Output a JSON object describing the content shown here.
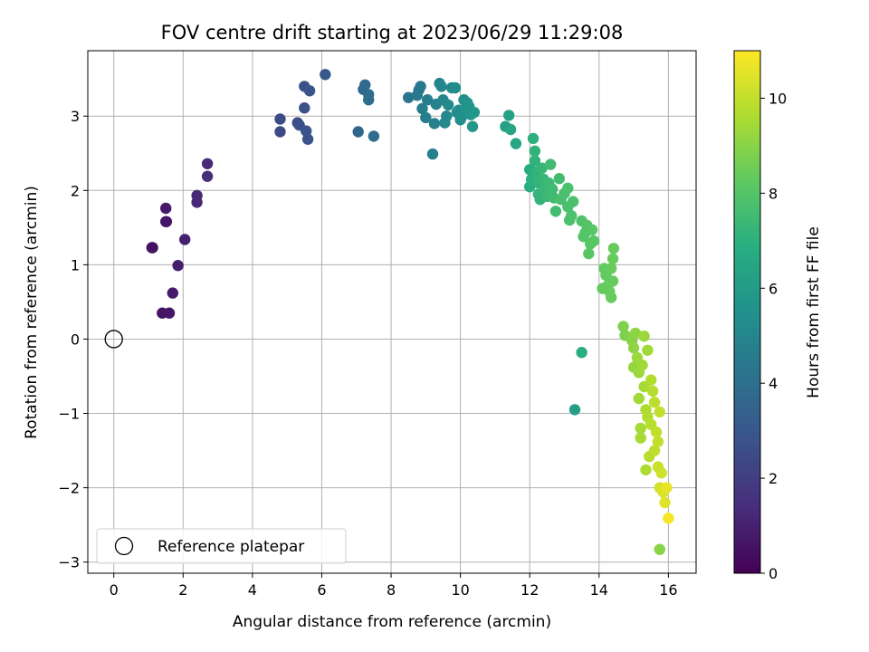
{
  "chart_data": {
    "type": "scatter",
    "title": "FOV centre drift starting at 2023/06/29 11:29:08",
    "xlabel": "Angular distance from reference (arcmin)",
    "ylabel": "Rotation from reference (arcmin)",
    "xlim": [
      -0.75,
      16.8
    ],
    "ylim": [
      -3.15,
      3.88
    ],
    "xticks": [
      0,
      2,
      4,
      6,
      8,
      10,
      12,
      14,
      16
    ],
    "xtick_labels": [
      "0",
      "2",
      "4",
      "6",
      "8",
      "10",
      "12",
      "14",
      "16"
    ],
    "yticks": [
      -3,
      -2,
      -1,
      0,
      1,
      2,
      3
    ],
    "ytick_labels": [
      "−3",
      "−2",
      "−1",
      "0",
      "1",
      "2",
      "3"
    ],
    "grid": true,
    "colormap": "viridis",
    "colorbar": {
      "label": "Hours from first FF file",
      "range": [
        0,
        11
      ],
      "ticks": [
        0,
        2,
        4,
        6,
        8,
        10
      ],
      "tick_labels": [
        "0",
        "2",
        "4",
        "6",
        "8",
        "10"
      ]
    },
    "legend": {
      "placement": "lower-left",
      "entries": [
        {
          "label": "Reference platepar",
          "marker": "open-circle"
        }
      ]
    },
    "reference_point": {
      "x": 0,
      "y": 0
    },
    "series": [
      {
        "comment_fields": "each point is [x arcmin, y arcmin, hours]",
        "points": [
          [
            1.4,
            0.35,
            0.6
          ],
          [
            1.6,
            0.35,
            0.7
          ],
          [
            1.7,
            0.62,
            0.8
          ],
          [
            1.85,
            0.99,
            0.9
          ],
          [
            1.1,
            1.23,
            0.5
          ],
          [
            1.12,
            1.23,
            0.55
          ],
          [
            2.05,
            1.34,
            1.0
          ],
          [
            1.5,
            1.58,
            0.65
          ],
          [
            1.52,
            1.58,
            0.7
          ],
          [
            1.5,
            1.76,
            0.75
          ],
          [
            2.4,
            1.84,
            1.2
          ],
          [
            2.4,
            1.93,
            1.25
          ],
          [
            2.7,
            2.19,
            1.4
          ],
          [
            2.7,
            2.36,
            1.3
          ],
          [
            4.8,
            2.79,
            2.4
          ],
          [
            4.8,
            2.96,
            2.5
          ],
          [
            5.3,
            2.91,
            2.6
          ],
          [
            5.35,
            2.88,
            2.6
          ],
          [
            5.5,
            3.11,
            2.7
          ],
          [
            5.6,
            2.69,
            2.8
          ],
          [
            5.55,
            2.8,
            2.8
          ],
          [
            5.5,
            3.4,
            2.7
          ],
          [
            5.65,
            3.34,
            2.9
          ],
          [
            6.1,
            3.56,
            3.0
          ],
          [
            7.05,
            2.79,
            3.6
          ],
          [
            7.2,
            3.36,
            3.7
          ],
          [
            7.25,
            3.42,
            3.8
          ],
          [
            7.35,
            3.29,
            3.85
          ],
          [
            7.35,
            3.22,
            3.9
          ],
          [
            7.5,
            2.73,
            3.9
          ],
          [
            8.5,
            3.25,
            4.3
          ],
          [
            8.75,
            3.28,
            4.4
          ],
          [
            8.8,
            3.35,
            4.5
          ],
          [
            8.85,
            3.4,
            4.45
          ],
          [
            8.9,
            3.1,
            4.6
          ],
          [
            9.0,
            2.98,
            4.6
          ],
          [
            9.05,
            3.22,
            4.7
          ],
          [
            9.2,
            2.49,
            4.8
          ],
          [
            9.25,
            2.9,
            4.8
          ],
          [
            9.3,
            3.16,
            4.9
          ],
          [
            9.4,
            3.44,
            4.9
          ],
          [
            9.45,
            3.4,
            5.0
          ],
          [
            9.5,
            3.22,
            5.0
          ],
          [
            9.55,
            2.91,
            5.1
          ],
          [
            9.6,
            3.0,
            5.1
          ],
          [
            9.65,
            3.15,
            5.2
          ],
          [
            9.75,
            3.38,
            5.2
          ],
          [
            9.85,
            3.38,
            5.3
          ],
          [
            9.9,
            3.05,
            5.3
          ],
          [
            9.95,
            3.08,
            5.4
          ],
          [
            10.0,
            2.95,
            5.4
          ],
          [
            10.05,
            3.0,
            5.5
          ],
          [
            10.1,
            3.22,
            5.5
          ],
          [
            10.15,
            3.1,
            5.6
          ],
          [
            10.2,
            3.18,
            5.6
          ],
          [
            10.25,
            3.13,
            5.7
          ],
          [
            10.3,
            3.02,
            5.7
          ],
          [
            10.35,
            2.86,
            5.8
          ],
          [
            10.4,
            3.05,
            5.8
          ],
          [
            11.3,
            2.86,
            6.2
          ],
          [
            11.4,
            3.01,
            6.3
          ],
          [
            11.45,
            2.82,
            6.4
          ],
          [
            11.6,
            2.63,
            6.5
          ],
          [
            12.0,
            2.28,
            6.8
          ],
          [
            12.0,
            2.05,
            6.9
          ],
          [
            12.05,
            2.15,
            7.0
          ],
          [
            12.1,
            2.7,
            7.0
          ],
          [
            12.15,
            2.53,
            7.1
          ],
          [
            12.15,
            2.4,
            7.1
          ],
          [
            12.2,
            2.25,
            7.1
          ],
          [
            12.25,
            2.1,
            7.2
          ],
          [
            12.25,
            1.95,
            7.2
          ],
          [
            12.3,
            1.88,
            7.2
          ],
          [
            12.35,
            2.3,
            7.3
          ],
          [
            12.4,
            2.15,
            7.3
          ],
          [
            12.45,
            2.0,
            7.3
          ],
          [
            12.5,
            1.92,
            7.4
          ],
          [
            12.55,
            2.1,
            7.4
          ],
          [
            12.6,
            2.35,
            7.5
          ],
          [
            12.65,
            2.02,
            7.5
          ],
          [
            12.7,
            1.9,
            7.5
          ],
          [
            12.75,
            1.72,
            7.6
          ],
          [
            12.85,
            2.16,
            7.6
          ],
          [
            12.9,
            1.88,
            7.7
          ],
          [
            13.0,
            1.96,
            7.7
          ],
          [
            13.1,
            2.03,
            7.8
          ],
          [
            13.1,
            1.78,
            7.8
          ],
          [
            13.15,
            1.6,
            7.8
          ],
          [
            13.2,
            1.66,
            7.8
          ],
          [
            13.25,
            1.85,
            7.8
          ],
          [
            13.3,
            -0.95,
            6.2
          ],
          [
            13.5,
            -0.18,
            6.9
          ],
          [
            13.5,
            1.59,
            7.9
          ],
          [
            13.55,
            1.38,
            8.0
          ],
          [
            13.6,
            1.43,
            8.0
          ],
          [
            13.65,
            1.53,
            8.0
          ],
          [
            13.7,
            1.15,
            8.1
          ],
          [
            13.75,
            1.28,
            8.1
          ],
          [
            13.8,
            1.47,
            8.1
          ],
          [
            13.85,
            1.32,
            8.1
          ],
          [
            14.1,
            0.68,
            8.3
          ],
          [
            14.15,
            0.95,
            8.3
          ],
          [
            14.2,
            0.86,
            8.3
          ],
          [
            14.25,
            0.72,
            8.4
          ],
          [
            14.3,
            0.64,
            8.4
          ],
          [
            14.35,
            0.56,
            8.4
          ],
          [
            14.35,
            0.95,
            8.4
          ],
          [
            14.4,
            0.78,
            8.4
          ],
          [
            14.4,
            1.08,
            8.4
          ],
          [
            14.42,
            1.22,
            8.4
          ],
          [
            14.7,
            0.17,
            8.8
          ],
          [
            14.75,
            0.05,
            8.8
          ],
          [
            14.95,
            -0.02,
            9.0
          ],
          [
            15.0,
            -0.12,
            9.1
          ],
          [
            15.0,
            -0.38,
            9.2
          ],
          [
            15.05,
            0.08,
            9.1
          ],
          [
            15.1,
            -0.25,
            9.3
          ],
          [
            15.15,
            -0.45,
            9.3
          ],
          [
            15.15,
            -0.8,
            9.4
          ],
          [
            15.2,
            -1.2,
            9.5
          ],
          [
            15.2,
            -1.33,
            9.5
          ],
          [
            15.25,
            -0.35,
            9.4
          ],
          [
            15.3,
            0.04,
            9.3
          ],
          [
            15.3,
            -0.64,
            9.5
          ],
          [
            15.35,
            -0.95,
            9.6
          ],
          [
            15.35,
            -1.76,
            9.6
          ],
          [
            15.4,
            -1.05,
            9.7
          ],
          [
            15.4,
            -0.15,
            9.4
          ],
          [
            15.45,
            -1.58,
            9.8
          ],
          [
            15.5,
            -0.55,
            9.7
          ],
          [
            15.5,
            -1.15,
            9.8
          ],
          [
            15.55,
            -0.7,
            9.8
          ],
          [
            15.6,
            -1.5,
            9.9
          ],
          [
            15.6,
            -0.85,
            9.9
          ],
          [
            15.65,
            -1.25,
            10.0
          ],
          [
            15.7,
            -1.72,
            10.1
          ],
          [
            15.7,
            -1.38,
            10.0
          ],
          [
            15.75,
            -0.98,
            10.0
          ],
          [
            15.75,
            -2.83,
            9.0
          ],
          [
            15.75,
            -2.0,
            10.3
          ],
          [
            15.8,
            -1.8,
            10.2
          ],
          [
            15.85,
            -2.06,
            10.4
          ],
          [
            15.9,
            -2.2,
            10.5
          ],
          [
            15.95,
            -2.0,
            10.6
          ],
          [
            16.0,
            -2.41,
            10.9
          ]
        ]
      }
    ]
  }
}
